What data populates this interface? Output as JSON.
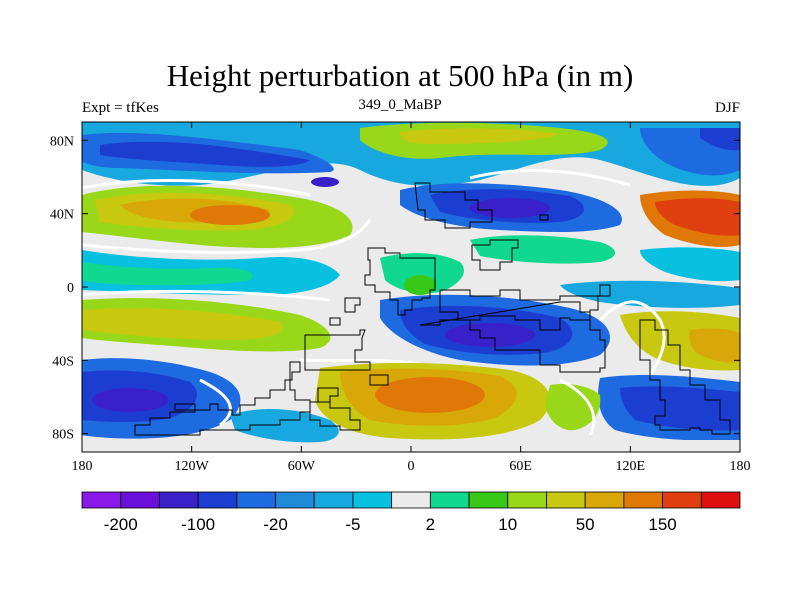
{
  "title": "Height perturbation at 500 hPa (in m)",
  "subtitle_left": "Expt = tfKes",
  "subtitle_center": "349_0_MaBP",
  "subtitle_right": "DJF",
  "lat_ticks": [
    {
      "value": 80,
      "label": "80N"
    },
    {
      "value": 40,
      "label": "40N"
    },
    {
      "value": 0,
      "label": "0"
    },
    {
      "value": -40,
      "label": "40S"
    },
    {
      "value": -80,
      "label": "80S"
    }
  ],
  "lon_ticks": [
    {
      "value": -180,
      "label": "180"
    },
    {
      "value": -120,
      "label": "120W"
    },
    {
      "value": -60,
      "label": "60W"
    },
    {
      "value": 0,
      "label": "0"
    },
    {
      "value": 60,
      "label": "60E"
    },
    {
      "value": 120,
      "label": "120E"
    },
    {
      "value": 180,
      "label": "180"
    }
  ],
  "colorbar": {
    "colors": [
      "#8a18e8",
      "#6a10d8",
      "#3a20c8",
      "#1c3ed0",
      "#1e6ae0",
      "#1e8ad8",
      "#18a8e0",
      "#08c0e0",
      "#ebebeb",
      "#10d890",
      "#38c818",
      "#98d818",
      "#c8c810",
      "#d8a808",
      "#e07808",
      "#e04010",
      "#e01010"
    ],
    "labels": [
      {
        "value": "-200",
        "after_box": 1
      },
      {
        "value": "-100",
        "after_box": 3
      },
      {
        "value": "-20",
        "after_box": 5
      },
      {
        "value": "-5",
        "after_box": 7
      },
      {
        "value": "2",
        "after_box": 9
      },
      {
        "value": "10",
        "after_box": 11
      },
      {
        "value": "50",
        "after_box": 13
      },
      {
        "value": "150",
        "after_box": 15
      }
    ]
  }
}
